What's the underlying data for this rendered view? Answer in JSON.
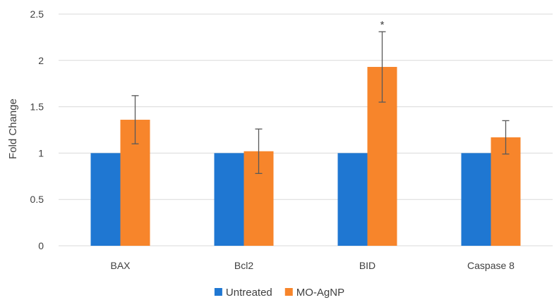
{
  "chart_data": {
    "type": "bar",
    "title": "",
    "xlabel": "",
    "ylabel": "Fold Change",
    "ylim": [
      0,
      2.5
    ],
    "yticks": [
      "0",
      "0.5",
      "1",
      "1.5",
      "2",
      "2.5"
    ],
    "grid": true,
    "legend_position": "bottom",
    "categories": [
      "BAX",
      "Bcl2",
      "BID",
      "Caspase 8"
    ],
    "series": [
      {
        "name": "Untreated",
        "color": "#1f77d2",
        "values": [
          1,
          1,
          1,
          1
        ],
        "errors": [
          0,
          0,
          0,
          0
        ]
      },
      {
        "name": "MO-AgNP",
        "color": "#f7852b",
        "values": [
          1.36,
          1.02,
          1.93,
          1.17
        ],
        "errors": [
          0.26,
          0.24,
          0.38,
          0.18
        ]
      }
    ],
    "annotations": [
      {
        "category": "BID",
        "series": "MO-AgNP",
        "text": "*"
      }
    ]
  }
}
